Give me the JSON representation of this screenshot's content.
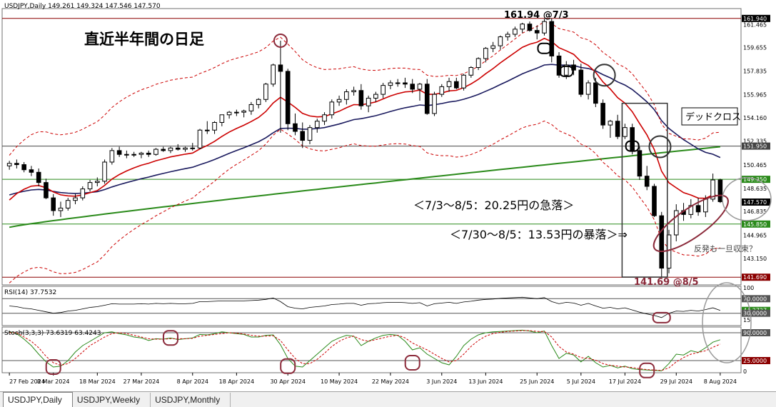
{
  "price_panel": {
    "header": "USDJPY,Daily  149.261 149.324 147.546 147.570",
    "title": "直近半年間の日足",
    "high_label": "161.94 @7/3",
    "low_label": "141.69 @8/5",
    "note_1": "＜7/3～8/5：20.25円の急落＞",
    "note_2": "＜7/30～8/5：13.53円の暴落＞⇒",
    "dead_cross_label": "デッドクロス",
    "rebound_label": "反発も一旦収束？"
  },
  "price_axis": [
    "161.940",
    "161.465",
    "159.655",
    "157.835",
    "155.965",
    "154.160",
    "152.335",
    "151.950",
    "150.465",
    "149.350",
    "148.635",
    "147.570",
    "146.835",
    "145.850",
    "144.965",
    "143.150",
    "141.690"
  ],
  "rsi_panel": {
    "header": "RSI(14) 37.7532",
    "axis": [
      "100",
      "70.0000",
      "44.2727",
      "30.0000",
      "15"
    ]
  },
  "stoch_panel": {
    "header": "Stoch(3,3,3) 73.6319 63.4243",
    "axis": [
      "90.0000",
      "25.0000",
      "0"
    ]
  },
  "x_axis": [
    "27 Feb 2024",
    "8 Mar 2024",
    "18 Mar 2024",
    "27 Mar 2024",
    "8 Apr 2024",
    "18 Apr 2024",
    "30 Apr 2024",
    "10 May 2024",
    "22 May 2024",
    "3 Jun 2024",
    "13 Jun 2024",
    "25 Jun 2024",
    "5 Jul 2024",
    "17 Jul 2024",
    "29 Jul 2024",
    "8 Aug 2024"
  ],
  "tabs": [
    "USDJPY,Daily",
    "USDJPY,Weekly",
    "USDJPY,Monthly"
  ],
  "colors": {
    "ma_short": "#cc0000",
    "ma_mid": "#1a1a5e",
    "ma_long": "#2a8a1a",
    "annotation": "#8b2a3a",
    "hline_green": "#2a8a1a",
    "hline_red": "#8b0000"
  },
  "chart_data": {
    "type": "candlestick",
    "symbol": "USDJPY",
    "timeframe": "Daily",
    "ylim": [
      141.2,
      162.6
    ],
    "hlines": [
      161.94,
      151.95,
      149.35,
      145.85,
      141.69
    ],
    "ohlc": [
      [
        150.4,
        150.8,
        150.1,
        150.6
      ],
      [
        150.6,
        150.9,
        150.2,
        150.5
      ],
      [
        150.5,
        150.7,
        149.9,
        150.1
      ],
      [
        150.1,
        150.4,
        149.6,
        149.9
      ],
      [
        149.9,
        150.2,
        148.8,
        149.1
      ],
      [
        149.1,
        149.4,
        147.8,
        147.9
      ],
      [
        147.9,
        148.2,
        146.5,
        146.9
      ],
      [
        146.9,
        147.6,
        146.4,
        147.1
      ],
      [
        147.1,
        147.9,
        146.9,
        147.7
      ],
      [
        147.7,
        148.2,
        147.4,
        147.9
      ],
      [
        147.9,
        148.8,
        147.7,
        148.6
      ],
      [
        148.6,
        149.3,
        148.4,
        149.1
      ],
      [
        149.1,
        149.5,
        148.8,
        149.2
      ],
      [
        149.2,
        150.9,
        149.0,
        150.7
      ],
      [
        150.7,
        151.8,
        150.5,
        151.6
      ],
      [
        151.6,
        151.9,
        151.1,
        151.3
      ],
      [
        151.3,
        151.6,
        151.0,
        151.3
      ],
      [
        151.3,
        151.5,
        151.1,
        151.3
      ],
      [
        151.3,
        151.5,
        151.0,
        151.4
      ],
      [
        151.4,
        151.6,
        151.1,
        151.3
      ],
      [
        151.3,
        151.8,
        151.2,
        151.7
      ],
      [
        151.7,
        151.9,
        151.5,
        151.6
      ],
      [
        151.6,
        151.9,
        151.4,
        151.8
      ],
      [
        151.8,
        152.1,
        151.6,
        151.7
      ],
      [
        151.7,
        151.9,
        151.5,
        151.8
      ],
      [
        151.8,
        152.2,
        151.6,
        151.8
      ],
      [
        151.8,
        153.3,
        151.7,
        153.2
      ],
      [
        153.2,
        153.9,
        152.9,
        153.2
      ],
      [
        153.2,
        153.9,
        152.9,
        153.8
      ],
      [
        153.8,
        154.4,
        153.5,
        154.4
      ],
      [
        154.4,
        154.7,
        154.1,
        154.6
      ],
      [
        154.6,
        154.8,
        154.3,
        154.6
      ],
      [
        154.6,
        154.8,
        154.2,
        154.7
      ],
      [
        154.7,
        155.4,
        154.4,
        155.2
      ],
      [
        155.2,
        155.7,
        154.9,
        155.6
      ],
      [
        155.6,
        156.9,
        155.4,
        156.8
      ],
      [
        156.8,
        158.4,
        156.6,
        158.3
      ],
      [
        158.3,
        160.2,
        153.0,
        157.8
      ],
      [
        157.8,
        158.0,
        153.2,
        153.7
      ],
      [
        153.7,
        154.5,
        152.8,
        153.1
      ],
      [
        153.1,
        153.8,
        151.8,
        152.4
      ],
      [
        152.4,
        153.6,
        152.1,
        153.4
      ],
      [
        153.4,
        154.1,
        153.0,
        153.9
      ],
      [
        153.9,
        154.6,
        153.6,
        154.4
      ],
      [
        154.4,
        155.6,
        154.1,
        155.4
      ],
      [
        155.4,
        155.9,
        155.1,
        155.6
      ],
      [
        155.6,
        156.4,
        155.2,
        156.2
      ],
      [
        156.2,
        156.6,
        155.9,
        156.3
      ],
      [
        156.3,
        156.8,
        154.8,
        155.1
      ],
      [
        155.1,
        155.9,
        154.6,
        155.7
      ],
      [
        155.7,
        156.2,
        155.4,
        156.0
      ],
      [
        156.0,
        156.9,
        155.7,
        156.7
      ],
      [
        156.7,
        157.1,
        156.4,
        156.9
      ],
      [
        156.9,
        157.2,
        156.6,
        156.9
      ],
      [
        156.9,
        157.3,
        156.5,
        156.8
      ],
      [
        156.8,
        157.2,
        156.1,
        156.4
      ],
      [
        156.4,
        156.9,
        155.5,
        156.8
      ],
      [
        156.8,
        157.2,
        154.4,
        154.5
      ],
      [
        154.5,
        156.2,
        154.3,
        156.0
      ],
      [
        156.0,
        156.8,
        155.8,
        156.6
      ],
      [
        156.6,
        157.3,
        156.2,
        157.0
      ],
      [
        157.0,
        157.3,
        156.4,
        156.5
      ],
      [
        156.5,
        157.6,
        156.3,
        157.5
      ],
      [
        157.5,
        158.2,
        157.3,
        158.1
      ],
      [
        158.1,
        158.9,
        157.9,
        158.8
      ],
      [
        158.8,
        159.7,
        158.5,
        159.6
      ],
      [
        159.6,
        160.1,
        159.3,
        159.8
      ],
      [
        159.8,
        160.6,
        159.5,
        160.5
      ],
      [
        160.5,
        160.9,
        160.2,
        160.7
      ],
      [
        160.7,
        161.3,
        160.5,
        161.1
      ],
      [
        161.1,
        161.6,
        160.8,
        161.5
      ],
      [
        161.5,
        161.7,
        160.9,
        161.0
      ],
      [
        161.0,
        161.4,
        160.3,
        160.8
      ],
      [
        160.8,
        161.9,
        160.6,
        161.7
      ],
      [
        161.7,
        161.94,
        158.5,
        159.0
      ],
      [
        159.0,
        159.3,
        157.3,
        157.5
      ],
      [
        157.5,
        158.6,
        157.2,
        158.3
      ],
      [
        158.3,
        158.7,
        157.5,
        157.9
      ],
      [
        157.9,
        158.4,
        155.8,
        156.0
      ],
      [
        156.0,
        157.1,
        155.6,
        156.9
      ],
      [
        156.9,
        157.3,
        155.0,
        155.3
      ],
      [
        155.3,
        155.6,
        153.3,
        153.6
      ],
      [
        153.6,
        154.0,
        152.6,
        153.9
      ],
      [
        153.9,
        154.4,
        152.5,
        152.7
      ],
      [
        152.7,
        153.7,
        152.5,
        153.4
      ],
      [
        153.4,
        153.7,
        151.3,
        151.6
      ],
      [
        151.6,
        151.9,
        149.3,
        149.6
      ],
      [
        149.6,
        150.4,
        148.5,
        148.8
      ],
      [
        148.8,
        149.0,
        146.4,
        146.5
      ],
      [
        146.5,
        146.8,
        141.69,
        142.4
      ],
      [
        142.4,
        145.4,
        142.0,
        145.0
      ],
      [
        145.0,
        147.4,
        144.5,
        146.9
      ],
      [
        146.9,
        147.5,
        146.1,
        146.6
      ],
      [
        146.6,
        147.8,
        146.3,
        147.3
      ],
      [
        147.3,
        147.9,
        146.5,
        146.8
      ],
      [
        146.8,
        148.1,
        146.4,
        147.8
      ],
      [
        147.8,
        149.8,
        147.6,
        149.3
      ],
      [
        149.3,
        149.4,
        147.5,
        147.6
      ]
    ],
    "rsi": {
      "period": 14,
      "last": 37.7532,
      "levels": [
        70,
        30
      ],
      "values": [
        50,
        48,
        44,
        42,
        38,
        34,
        30,
        32,
        36,
        38,
        42,
        46,
        48,
        52,
        56,
        55,
        55,
        55,
        56,
        55,
        57,
        56,
        57,
        56,
        56,
        57,
        62,
        62,
        63,
        64,
        64,
        64,
        64,
        65,
        66,
        68,
        72,
        62,
        48,
        44,
        42,
        46,
        48,
        50,
        54,
        55,
        57,
        57,
        52,
        56,
        57,
        59,
        60,
        60,
        59,
        57,
        59,
        50,
        56,
        58,
        60,
        57,
        61,
        63,
        66,
        68,
        69,
        71,
        72,
        73,
        74,
        72,
        70,
        73,
        62,
        56,
        60,
        58,
        52,
        57,
        50,
        44,
        46,
        42,
        45,
        39,
        33,
        28,
        24,
        18,
        30,
        36,
        35,
        38,
        36,
        40,
        45,
        37.75
      ]
    },
    "stochastic": {
      "params": "3,3,3",
      "k_last": 73.6319,
      "d_last": 63.4243,
      "levels": [
        90,
        25
      ],
      "k": [
        92,
        88,
        75,
        60,
        40,
        22,
        10,
        12,
        25,
        45,
        60,
        70,
        80,
        90,
        92,
        88,
        85,
        80,
        78,
        72,
        76,
        75,
        78,
        74,
        76,
        78,
        86,
        85,
        88,
        92,
        90,
        88,
        86,
        80,
        80,
        84,
        85,
        62,
        30,
        12,
        10,
        25,
        40,
        55,
        70,
        78,
        84,
        82,
        60,
        70,
        78,
        84,
        86,
        84,
        70,
        50,
        55,
        40,
        30,
        20,
        15,
        35,
        60,
        75,
        85,
        90,
        92,
        93,
        94,
        95,
        96,
        94,
        90,
        94,
        60,
        30,
        42,
        38,
        22,
        35,
        20,
        10,
        14,
        8,
        12,
        6,
        4,
        3,
        2,
        1,
        18,
        40,
        38,
        48,
        44,
        55,
        68,
        73.63
      ],
      "d": [
        90,
        90,
        80,
        70,
        55,
        35,
        20,
        14,
        18,
        30,
        45,
        60,
        70,
        80,
        88,
        90,
        88,
        84,
        80,
        76,
        75,
        75,
        76,
        76,
        76,
        77,
        82,
        84,
        86,
        88,
        90,
        89,
        87,
        84,
        82,
        82,
        83,
        72,
        50,
        30,
        18,
        18,
        28,
        42,
        58,
        70,
        78,
        82,
        74,
        70,
        74,
        78,
        82,
        84,
        78,
        66,
        58,
        50,
        40,
        30,
        22,
        25,
        40,
        58,
        72,
        82,
        88,
        91,
        93,
        94,
        95,
        95,
        93,
        93,
        80,
        58,
        45,
        40,
        32,
        30,
        26,
        18,
        14,
        12,
        10,
        9,
        6,
        4,
        3,
        2,
        8,
        22,
        32,
        40,
        44,
        48,
        56,
        63.42
      ]
    }
  }
}
